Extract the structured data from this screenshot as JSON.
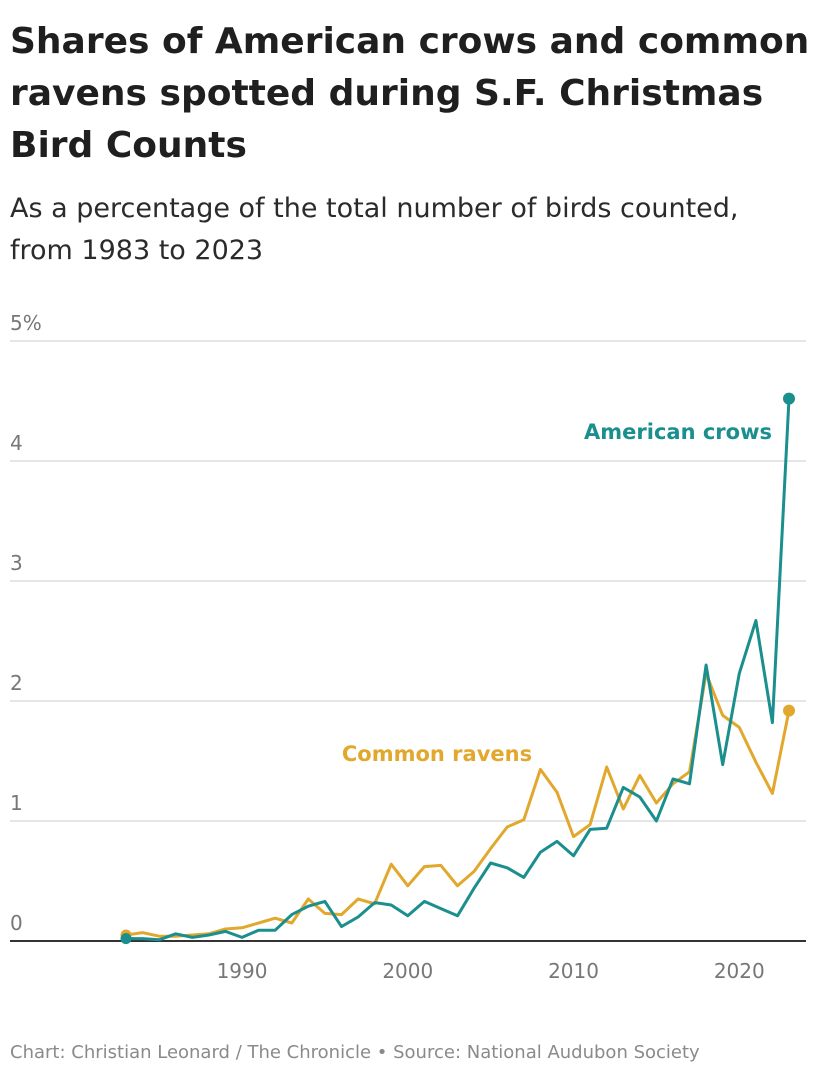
{
  "title": "Shares of American crows and common ravens spotted during S.F. Christmas Bird Counts",
  "subtitle": "As a percentage of the total number of birds counted, from 1983 to 2023",
  "credit": "Chart: Christian Leonard / The Chronicle • Source: National Audubon Society",
  "colors": {
    "crows": "#1b8e8e",
    "ravens": "#e2a82e",
    "grid": "#dddddd",
    "axis": "#333333"
  },
  "chart_data": {
    "type": "line",
    "title": "Shares of American crows and common ravens spotted during S.F. Christmas Bird Counts",
    "subtitle": "As a percentage of the total number of birds counted, from 1983 to 2023",
    "xlabel": "",
    "ylabel": "",
    "xlim": [
      1983,
      2023
    ],
    "ylim": [
      0,
      5
    ],
    "x_ticks": [
      1990,
      2000,
      2010,
      2020
    ],
    "x_tick_labels": [
      "1990",
      "2000",
      "2010",
      "2020"
    ],
    "y_ticks": [
      0,
      1,
      2,
      3,
      4,
      5
    ],
    "y_tick_labels": [
      "0",
      "1",
      "2",
      "3",
      "4",
      "5%"
    ],
    "grid": true,
    "legend": "direct labels on lines",
    "x": [
      1983,
      1984,
      1985,
      1986,
      1987,
      1988,
      1989,
      1990,
      1991,
      1992,
      1993,
      1994,
      1995,
      1996,
      1997,
      1998,
      1999,
      2000,
      2001,
      2002,
      2003,
      2004,
      2005,
      2006,
      2007,
      2008,
      2009,
      2010,
      2011,
      2012,
      2013,
      2014,
      2015,
      2016,
      2017,
      2018,
      2019,
      2020,
      2021,
      2022,
      2023
    ],
    "series": [
      {
        "name": "American crows",
        "color": "#1b8e8e",
        "values": [
          0.02,
          0.02,
          0.01,
          0.06,
          0.03,
          0.05,
          0.08,
          0.03,
          0.09,
          0.09,
          0.22,
          0.29,
          0.33,
          0.12,
          0.2,
          0.32,
          0.3,
          0.21,
          0.33,
          0.27,
          0.21,
          0.44,
          0.65,
          0.61,
          0.53,
          0.74,
          0.83,
          0.71,
          0.93,
          0.94,
          1.28,
          1.2,
          1.0,
          1.35,
          1.31,
          2.3,
          1.47,
          2.23,
          2.67,
          1.82,
          4.52
        ]
      },
      {
        "name": "Common ravens",
        "color": "#e2a82e",
        "values": [
          0.05,
          0.07,
          0.04,
          0.04,
          0.05,
          0.06,
          0.1,
          0.11,
          0.15,
          0.19,
          0.15,
          0.35,
          0.23,
          0.22,
          0.35,
          0.31,
          0.64,
          0.46,
          0.62,
          0.63,
          0.46,
          0.58,
          0.77,
          0.95,
          1.01,
          1.43,
          1.24,
          0.87,
          0.97,
          1.45,
          1.1,
          1.38,
          1.15,
          1.31,
          1.41,
          2.23,
          1.88,
          1.78,
          1.49,
          1.23,
          1.92
        ]
      }
    ]
  }
}
